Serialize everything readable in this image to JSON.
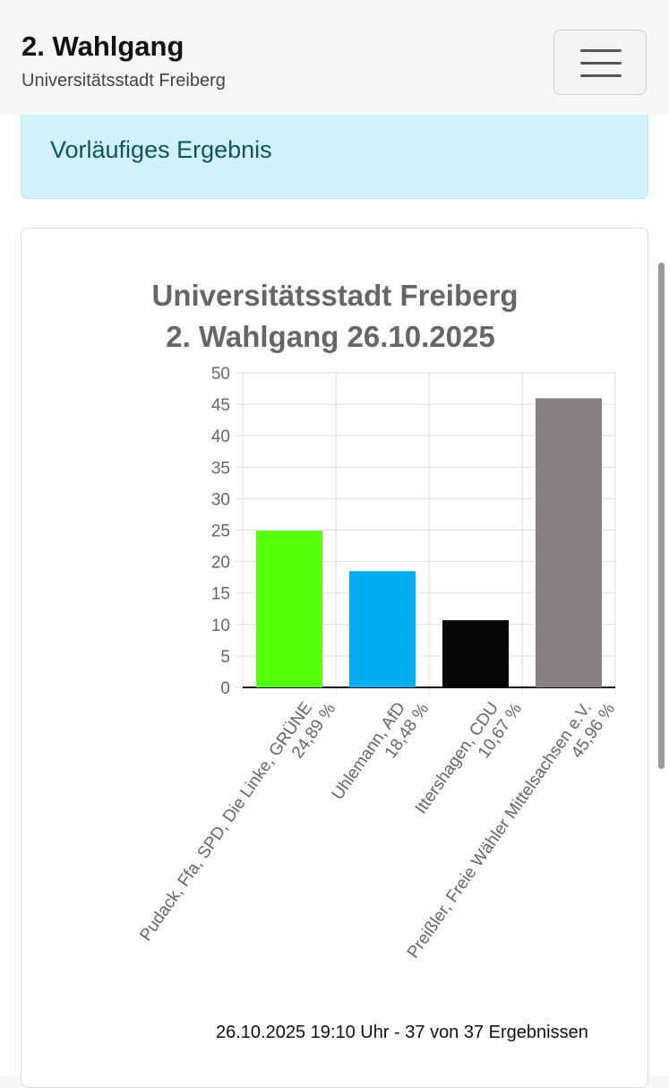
{
  "header": {
    "title": "2. Wahlgang",
    "subtitle": "Universitätsstadt Freiberg"
  },
  "alert": {
    "text": "Vorläufiges Ergebnis"
  },
  "footer_note": "26.10.2025 19:10 Uhr - 37 von 37 Ergebnissen",
  "chart_data": {
    "type": "bar",
    "title_lines": [
      "Universitätsstadt Freiberg",
      "2. Wahlgang 26.10.2025"
    ],
    "xlabel": "",
    "ylabel": "",
    "ylim": [
      0,
      50
    ],
    "yticks": [
      0,
      5,
      10,
      15,
      20,
      25,
      30,
      35,
      40,
      45,
      50
    ],
    "grid": true,
    "categories": [
      {
        "label": "Pudack, Ffa, SPD, Die Linke, GRÜNE",
        "value_label": "24,89 %",
        "value": 24.89,
        "color": "#54ff0a"
      },
      {
        "label": "Uhlemann, AfD",
        "value_label": "18,48 %",
        "value": 18.48,
        "color": "#00aeef"
      },
      {
        "label": "Ittershagen, CDU",
        "value_label": "10,67 %",
        "value": 10.67,
        "color": "#060606"
      },
      {
        "label": "Preißler, Freie Wähler Mittelsachsen e.V.",
        "value_label": "45,96 %",
        "value": 45.96,
        "color": "#888181"
      }
    ]
  }
}
